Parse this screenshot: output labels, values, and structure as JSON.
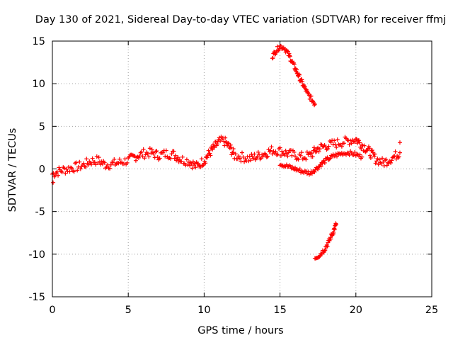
{
  "chart_data": {
    "type": "scatter",
    "title": "Day 130 of 2021, Sidereal Day-to-day VTEC variation (SDTVAR) for receiver ffmj",
    "xlabel": "GPS time / hours",
    "ylabel": "SDTVAR / TECUs",
    "xlim": [
      0,
      25
    ],
    "ylim": [
      -15,
      15
    ],
    "xticks": [
      "0",
      "5",
      "10",
      "15",
      "20",
      "25"
    ],
    "yticks": [
      "15",
      "10",
      "5",
      "0",
      "-5",
      "-10",
      "-15"
    ],
    "grid": true,
    "marker": "+",
    "series": [
      {
        "name": "main band",
        "color": "#ff0000",
        "thickness": 1.1,
        "points": [
          [
            0.0,
            -0.6
          ],
          [
            0.5,
            -0.2
          ],
          [
            1.0,
            0.0
          ],
          [
            1.5,
            0.2
          ],
          [
            2.0,
            0.4
          ],
          [
            2.5,
            0.9
          ],
          [
            3.0,
            1.0
          ],
          [
            3.5,
            0.5
          ],
          [
            4.0,
            0.6
          ],
          [
            4.5,
            0.8
          ],
          [
            5.0,
            1.0
          ],
          [
            5.5,
            1.5
          ],
          [
            6.0,
            1.8
          ],
          [
            6.5,
            1.9
          ],
          [
            7.0,
            1.6
          ],
          [
            7.5,
            1.8
          ],
          [
            8.0,
            1.7
          ],
          [
            8.5,
            1.1
          ],
          [
            9.0,
            0.9
          ],
          [
            9.5,
            0.3
          ],
          [
            10.0,
            1.0
          ],
          [
            10.5,
            2.2
          ],
          [
            11.0,
            3.2
          ],
          [
            11.3,
            3.3
          ],
          [
            11.7,
            2.5
          ],
          [
            12.0,
            1.6
          ],
          [
            12.5,
            1.4
          ],
          [
            13.0,
            1.2
          ],
          [
            13.5,
            1.5
          ],
          [
            14.0,
            1.8
          ],
          [
            14.5,
            2.2
          ],
          [
            15.0,
            2.1
          ],
          [
            15.5,
            1.8
          ],
          [
            16.0,
            1.6
          ],
          [
            16.5,
            1.4
          ],
          [
            17.0,
            1.6
          ],
          [
            17.5,
            2.4
          ],
          [
            18.0,
            2.7
          ],
          [
            18.5,
            2.9
          ],
          [
            19.0,
            3.1
          ],
          [
            19.5,
            3.3
          ],
          [
            20.0,
            3.5
          ],
          [
            20.3,
            3.0
          ],
          [
            20.8,
            2.2
          ],
          [
            21.3,
            1.2
          ],
          [
            21.8,
            0.7
          ],
          [
            22.3,
            1.2
          ],
          [
            22.9,
            1.9
          ]
        ]
      },
      {
        "name": "lower band",
        "color": "#ff0000",
        "thickness": 0.5,
        "points": [
          [
            15.0,
            0.6
          ],
          [
            15.5,
            0.3
          ],
          [
            16.0,
            0.0
          ],
          [
            16.5,
            -0.3
          ],
          [
            17.0,
            -0.5
          ],
          [
            17.5,
            0.2
          ],
          [
            18.0,
            1.0
          ],
          [
            18.5,
            1.5
          ],
          [
            19.0,
            1.8
          ],
          [
            19.5,
            1.9
          ],
          [
            20.0,
            1.7
          ],
          [
            20.4,
            1.4
          ]
        ]
      },
      {
        "name": "upper arc",
        "color": "#ff0000",
        "thickness": 0.6,
        "points": [
          [
            14.5,
            13.2
          ],
          [
            14.7,
            13.8
          ],
          [
            15.0,
            14.4
          ],
          [
            15.3,
            14.2
          ],
          [
            15.6,
            13.3
          ],
          [
            16.0,
            11.8
          ],
          [
            16.4,
            10.3
          ],
          [
            16.8,
            8.9
          ],
          [
            17.3,
            7.6
          ]
        ]
      },
      {
        "name": "lower arc",
        "color": "#ff0000",
        "thickness": 0.6,
        "points": [
          [
            17.3,
            -10.4
          ],
          [
            17.6,
            -10.1
          ],
          [
            17.9,
            -9.5
          ],
          [
            18.2,
            -8.6
          ],
          [
            18.5,
            -7.4
          ],
          [
            18.7,
            -6.5
          ]
        ]
      },
      {
        "name": "outliers",
        "color": "#ff0000",
        "thickness": 0,
        "points": [
          [
            0.05,
            -1.6
          ],
          [
            22.9,
            3.1
          ]
        ]
      }
    ]
  }
}
